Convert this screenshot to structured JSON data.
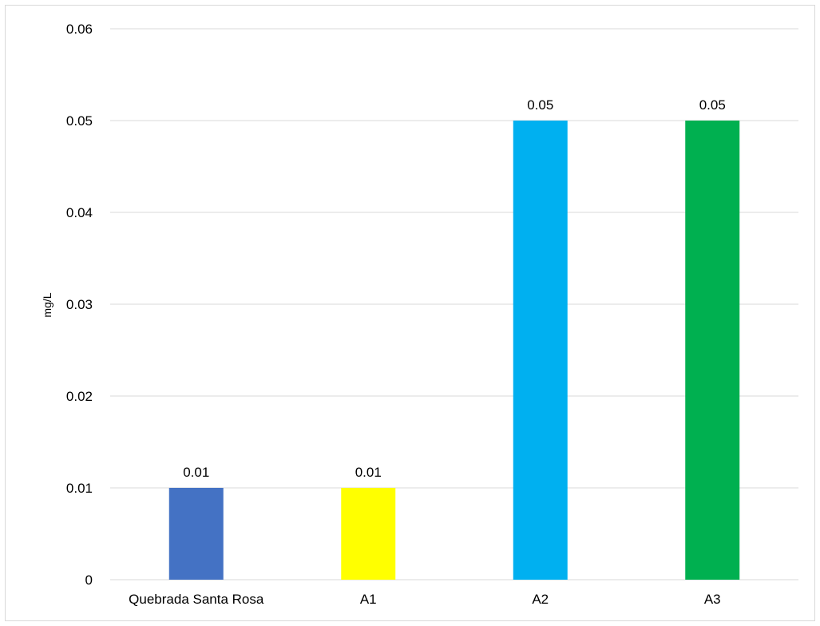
{
  "chart_data": {
    "type": "bar",
    "categories": [
      "Quebrada Santa Rosa",
      "A1",
      "A2",
      "A3"
    ],
    "values": [
      0.01,
      0.01,
      0.05,
      0.05
    ],
    "data_labels": [
      "0.01",
      "0.01",
      "0.05",
      "0.05"
    ],
    "bar_colors": [
      "#4472C4",
      "#FFFF00",
      "#00B0F0",
      "#00B050"
    ],
    "title": "",
    "xlabel": "",
    "ylabel": "mg/L",
    "ylim": [
      0,
      0.06
    ],
    "yticks": [
      0,
      0.01,
      0.02,
      0.03,
      0.04,
      0.05,
      0.06
    ],
    "ytick_labels": [
      "0",
      "0.01",
      "0.02",
      "0.03",
      "0.04",
      "0.05",
      "0.06"
    ],
    "grid": true,
    "legend": "none"
  }
}
